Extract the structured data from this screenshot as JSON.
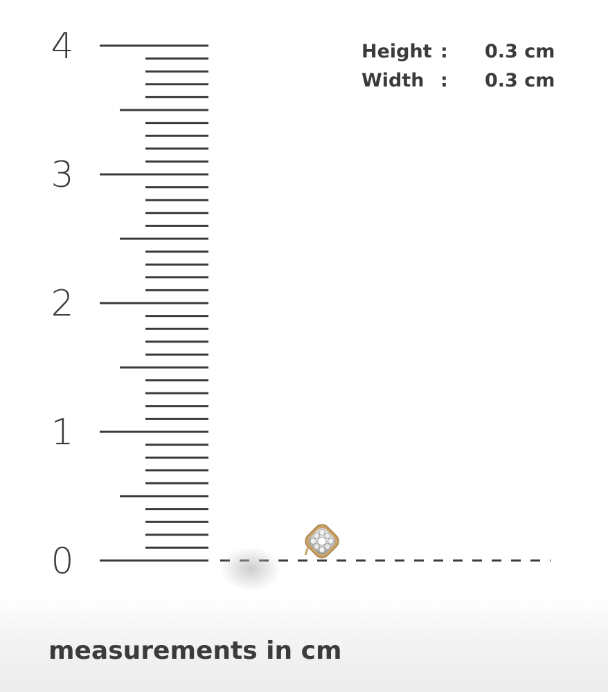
{
  "ruler": {
    "unit": "cm",
    "min": 0,
    "max": 4,
    "minor_step": 0.1,
    "labels": [
      "0",
      "1",
      "2",
      "3",
      "4"
    ]
  },
  "dimensions": [
    {
      "label": "Height",
      "separator": ":",
      "value": "0.3 cm"
    },
    {
      "label": "Width",
      "separator": ":",
      "value": "0.3 cm"
    }
  ],
  "item": {
    "icon": "diamond-cluster-stud-earring-icon",
    "height_cm": 0.3,
    "width_cm": 0.3
  },
  "caption": "measurements in cm",
  "colors": {
    "ink": "#3a3a3a",
    "gold": "#c9a36a",
    "diamond": "#e8e8e8"
  }
}
